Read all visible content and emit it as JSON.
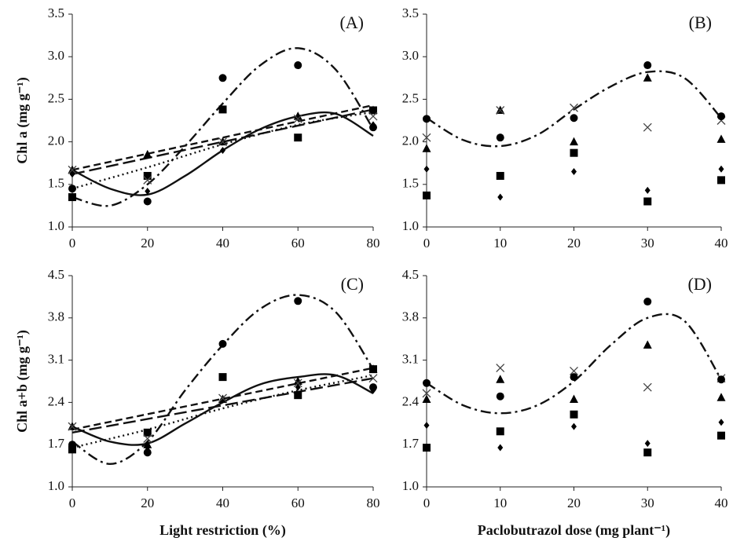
{
  "chart_data": [
    {
      "type": "scatter",
      "panel_label": "(A)",
      "y_label": "Chl a (mg g⁻¹)",
      "xlim": [
        0,
        80
      ],
      "xticks": [
        0,
        20,
        40,
        60,
        80
      ],
      "ylim": [
        1.0,
        3.5
      ],
      "yticks": [
        {
          "value": 1.0,
          "label": "1.0"
        },
        {
          "value": 1.5,
          "label": "1.5"
        },
        {
          "value": 2.0,
          "label": "2.0"
        },
        {
          "value": 2.5,
          "label": "2.5"
        },
        {
          "value": 3.0,
          "label": "3.0"
        },
        {
          "value": 3.5,
          "label": "3.5"
        }
      ],
      "x": [
        0,
        20,
        40,
        60,
        80
      ],
      "series": [
        {
          "marker": "diamond",
          "color": "#000000",
          "values": [
            1.62,
            1.42,
            1.9,
            2.28,
            2.2
          ]
        },
        {
          "marker": "square",
          "color": "#000000",
          "values": [
            1.35,
            1.6,
            2.38,
            2.05,
            2.37
          ]
        },
        {
          "marker": "triangle",
          "color": "#000000",
          "values": [
            1.67,
            1.85,
            2.0,
            2.3,
            2.37
          ]
        },
        {
          "marker": "cross",
          "color": "#444444",
          "values": [
            1.67,
            1.55,
            2.0,
            2.27,
            2.3
          ]
        },
        {
          "marker": "circle",
          "color": "#000000",
          "values": [
            1.45,
            1.3,
            2.75,
            2.9,
            2.17
          ]
        }
      ],
      "fits": [
        {
          "line_style": "solid",
          "x": [
            0,
            10,
            20,
            30,
            40,
            50,
            60,
            70,
            80
          ],
          "values": [
            1.67,
            1.45,
            1.38,
            1.6,
            1.9,
            2.15,
            2.3,
            2.33,
            2.07
          ]
        },
        {
          "line_style": "dashed",
          "x": [
            0,
            80
          ],
          "values": [
            1.67,
            2.43
          ]
        },
        {
          "line_style": "longdash",
          "x": [
            0,
            80
          ],
          "values": [
            1.62,
            2.38
          ]
        },
        {
          "line_style": "dotted",
          "x": [
            0,
            20,
            40,
            60,
            80
          ],
          "values": [
            1.45,
            1.7,
            1.97,
            2.2,
            2.35
          ]
        },
        {
          "line_style": "dashdot",
          "x": [
            0,
            10,
            20,
            30,
            40,
            50,
            60,
            70,
            80
          ],
          "values": [
            1.35,
            1.25,
            1.5,
            1.95,
            2.45,
            2.9,
            3.1,
            2.85,
            2.15
          ]
        }
      ]
    },
    {
      "type": "scatter",
      "panel_label": "(B)",
      "xlim": [
        0,
        40
      ],
      "xticks": [
        0,
        10,
        20,
        30,
        40
      ],
      "ylim": [
        1.0,
        3.5
      ],
      "yticks": [
        {
          "value": 1.0,
          "label": "1.0"
        },
        {
          "value": 1.5,
          "label": "1.5"
        },
        {
          "value": 2.0,
          "label": "2.0"
        },
        {
          "value": 2.5,
          "label": "2.5"
        },
        {
          "value": 3.0,
          "label": "3.0"
        },
        {
          "value": 3.5,
          "label": "3.5"
        }
      ],
      "x": [
        0,
        10,
        20,
        30,
        40
      ],
      "series": [
        {
          "marker": "diamond",
          "color": "#000000",
          "values": [
            1.68,
            1.35,
            1.65,
            1.43,
            1.68
          ]
        },
        {
          "marker": "square",
          "color": "#000000",
          "values": [
            1.37,
            1.6,
            1.87,
            1.3,
            1.55
          ]
        },
        {
          "marker": "triangle",
          "color": "#000000",
          "values": [
            1.92,
            2.37,
            2.0,
            2.75,
            2.03
          ]
        },
        {
          "marker": "cross",
          "color": "#444444",
          "values": [
            2.05,
            2.37,
            2.4,
            2.17,
            2.25
          ]
        },
        {
          "marker": "circle",
          "color": "#000000",
          "values": [
            2.27,
            2.05,
            2.28,
            2.9,
            2.3
          ]
        }
      ],
      "fits": [
        {
          "line_style": "dashdot",
          "x": [
            0,
            5,
            10,
            15,
            20,
            25,
            30,
            35,
            40
          ],
          "values": [
            2.28,
            2.02,
            1.95,
            2.08,
            2.38,
            2.65,
            2.82,
            2.75,
            2.28
          ]
        }
      ]
    },
    {
      "type": "scatter",
      "panel_label": "(C)",
      "y_label": "Chl a+b (mg g⁻¹)",
      "x_label": "Light restriction (%)",
      "xlim": [
        0,
        80
      ],
      "xticks": [
        0,
        20,
        40,
        60,
        80
      ],
      "ylim": [
        1.0,
        4.5
      ],
      "yticks": [
        {
          "value": 1.0,
          "label": "1.0"
        },
        1.7,
        2.4,
        3.1,
        3.8,
        4.5
      ],
      "x": [
        0,
        20,
        40,
        60,
        80
      ],
      "series": [
        {
          "marker": "diamond",
          "color": "#000000",
          "values": [
            1.7,
            1.65,
            2.45,
            2.65,
            2.6
          ]
        },
        {
          "marker": "square",
          "color": "#000000",
          "values": [
            1.62,
            1.9,
            2.82,
            2.52,
            2.95
          ]
        },
        {
          "marker": "triangle",
          "color": "#000000",
          "values": [
            2.0,
            1.7,
            2.45,
            2.75,
            2.95
          ]
        },
        {
          "marker": "cross",
          "color": "#444444",
          "values": [
            2.0,
            1.8,
            2.47,
            2.72,
            2.8
          ]
        },
        {
          "marker": "circle",
          "color": "#000000",
          "values": [
            1.7,
            1.57,
            3.37,
            4.08,
            2.65
          ]
        }
      ],
      "fits": [
        {
          "line_style": "solid",
          "x": [
            0,
            10,
            20,
            30,
            40,
            50,
            60,
            70,
            80
          ],
          "values": [
            2.0,
            1.75,
            1.72,
            2.05,
            2.4,
            2.7,
            2.82,
            2.85,
            2.55
          ]
        },
        {
          "line_style": "dashed",
          "x": [
            0,
            80
          ],
          "values": [
            1.95,
            2.97
          ]
        },
        {
          "line_style": "longdash",
          "x": [
            0,
            80
          ],
          "values": [
            1.9,
            2.8
          ]
        },
        {
          "line_style": "dotted",
          "x": [
            0,
            20,
            40,
            60,
            80
          ],
          "values": [
            1.65,
            1.95,
            2.3,
            2.6,
            2.85
          ]
        },
        {
          "line_style": "dashdot",
          "x": [
            0,
            10,
            20,
            30,
            40,
            50,
            60,
            70,
            80
          ],
          "values": [
            1.75,
            1.38,
            1.75,
            2.6,
            3.35,
            3.95,
            4.18,
            3.9,
            2.95
          ]
        }
      ]
    },
    {
      "type": "scatter",
      "panel_label": "(D)",
      "x_label": "Paclobutrazol dose (mg plant⁻¹)",
      "xlim": [
        0,
        40
      ],
      "xticks": [
        0,
        10,
        20,
        30,
        40
      ],
      "ylim": [
        1.0,
        4.5
      ],
      "yticks": [
        {
          "value": 1.0,
          "label": "1.0"
        },
        1.7,
        2.4,
        3.1,
        3.8,
        4.5
      ],
      "x": [
        0,
        10,
        20,
        30,
        40
      ],
      "series": [
        {
          "marker": "diamond",
          "color": "#000000",
          "values": [
            2.02,
            1.65,
            2.0,
            1.72,
            2.07
          ]
        },
        {
          "marker": "square",
          "color": "#000000",
          "values": [
            1.65,
            1.92,
            2.2,
            1.57,
            1.85
          ]
        },
        {
          "marker": "triangle",
          "color": "#000000",
          "values": [
            2.45,
            2.78,
            2.45,
            3.35,
            2.48
          ]
        },
        {
          "marker": "cross",
          "color": "#444444",
          "values": [
            2.55,
            2.97,
            2.92,
            2.65,
            2.8
          ]
        },
        {
          "marker": "circle",
          "color": "#000000",
          "values": [
            2.72,
            2.5,
            2.82,
            4.07,
            2.78
          ]
        }
      ],
      "fits": [
        {
          "line_style": "dashdot",
          "x": [
            0,
            5,
            10,
            15,
            20,
            25,
            30,
            35,
            40
          ],
          "values": [
            2.72,
            2.35,
            2.22,
            2.35,
            2.75,
            3.35,
            3.8,
            3.75,
            2.78
          ]
        }
      ]
    }
  ]
}
